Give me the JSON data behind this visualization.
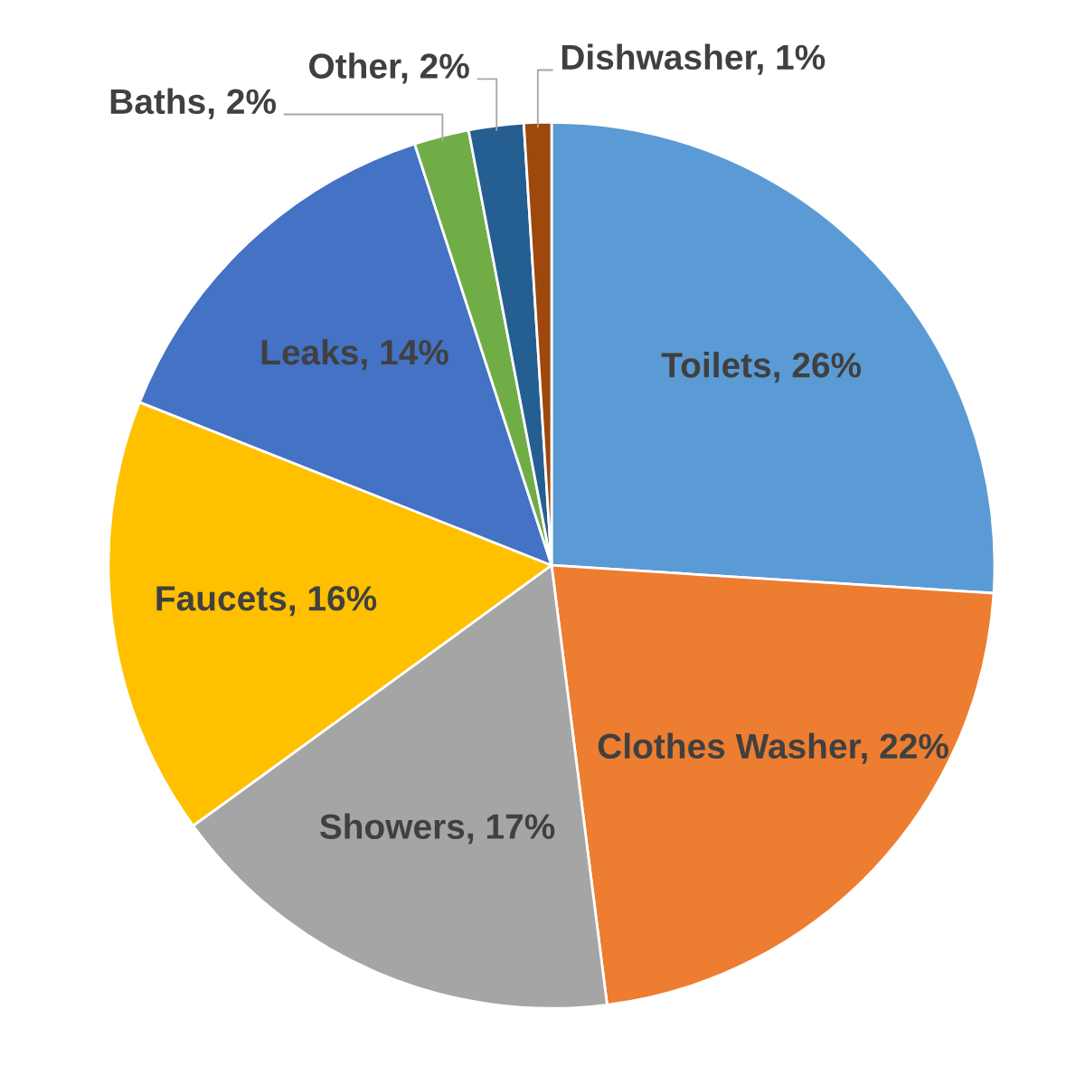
{
  "chart_data": {
    "type": "pie",
    "categories": [
      "Toilets",
      "Clothes Washer",
      "Showers",
      "Faucets",
      "Leaks",
      "Baths",
      "Other",
      "Dishwasher"
    ],
    "values": [
      26,
      22,
      17,
      16,
      14,
      2,
      2,
      1
    ],
    "colors": [
      "#5b9bd5",
      "#ed7d31",
      "#a5a5a5",
      "#ffc000",
      "#4472c4",
      "#70ad47",
      "#255e91",
      "#9e480e"
    ],
    "value_labels": [
      "26%",
      "22%",
      "17%",
      "16%",
      "14%",
      "2%",
      "2%",
      "1%"
    ]
  }
}
